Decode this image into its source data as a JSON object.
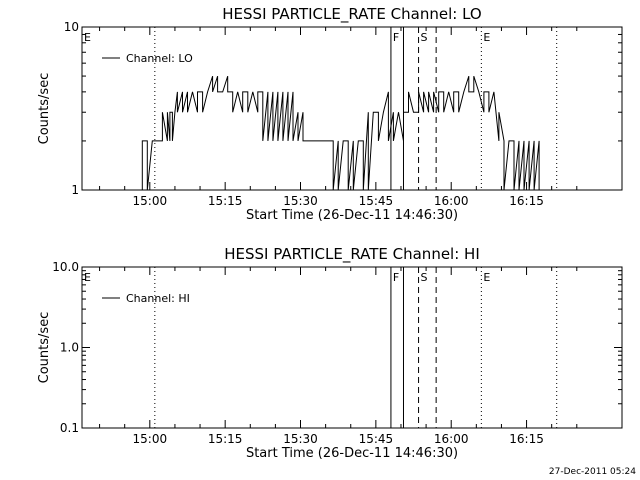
{
  "chart_data": [
    {
      "type": "line",
      "title": "HESSI PARTICLE_RATE Channel: LO",
      "xlabel": "Start Time (26-Dec-11 14:46:30)",
      "ylabel": "Counts/sec",
      "yscale": "log",
      "ylim": [
        1,
        10
      ],
      "xlim": [
        "14:46:30",
        "16:34:00"
      ],
      "x_ticks": [
        "15:00",
        "15:15",
        "15:30",
        "15:45",
        "16:00",
        "16:15"
      ],
      "y_ticks": [
        "1",
        "10"
      ],
      "legend": {
        "placement": "top-left",
        "entries": [
          "Channel: LO"
        ]
      },
      "grid": false,
      "series": [
        {
          "name": "Channel: LO",
          "x_minutes_after_start": [
            12,
            12,
            13,
            13,
            14,
            14,
            15,
            15,
            16,
            16,
            17,
            17,
            17.5,
            17.5,
            18,
            18,
            18.5,
            18.5,
            19,
            19,
            20,
            20,
            21,
            21,
            22,
            22,
            23,
            23,
            24,
            24,
            25,
            25,
            26,
            26,
            27,
            27,
            28,
            28,
            29,
            29,
            30,
            30,
            31,
            31,
            32,
            32,
            33,
            33,
            34,
            34,
            35,
            35,
            36,
            36,
            37,
            37,
            38,
            38,
            39,
            39,
            40,
            40,
            41,
            41,
            42,
            42,
            43,
            43,
            44,
            44,
            45,
            45,
            46,
            46,
            47,
            47,
            48,
            48,
            49,
            49,
            50,
            50,
            51,
            51,
            52,
            52,
            53,
            53,
            54,
            54,
            55,
            55,
            56,
            56,
            57,
            57,
            58,
            58,
            59,
            59,
            60,
            60,
            61,
            61,
            62,
            62,
            63,
            63,
            64,
            64,
            65,
            65,
            66,
            66,
            67,
            67,
            68,
            68,
            69,
            69,
            70,
            70,
            71,
            71,
            72,
            72,
            73,
            73,
            74,
            74,
            75,
            75,
            76,
            76,
            77,
            77,
            78,
            78,
            79,
            79,
            80,
            80,
            81,
            81,
            82,
            82,
            83,
            83,
            84,
            84,
            85,
            85,
            86,
            86,
            87,
            87,
            88,
            88,
            89,
            89,
            90,
            90,
            91,
            91,
            92,
            92,
            93,
            93,
            94,
            94,
            95,
            95,
            96,
            96,
            97,
            97,
            98,
            98,
            99,
            99,
            100,
            100
          ],
          "values": [
            1,
            2,
            2,
            1,
            2,
            2,
            2,
            2,
            2,
            3,
            2,
            3,
            2,
            3,
            3,
            2,
            3,
            3,
            4,
            3,
            4,
            3,
            4,
            3,
            4,
            4,
            3,
            4,
            4,
            3,
            4,
            4,
            5,
            4,
            5,
            4,
            4,
            4,
            5,
            4,
            4,
            3,
            4,
            4,
            3,
            4,
            4,
            3,
            4,
            4,
            3,
            4,
            4,
            2,
            4,
            2,
            4,
            2,
            4,
            2,
            4,
            2,
            4,
            2,
            4,
            2,
            3,
            2,
            3,
            2,
            2,
            2,
            2,
            2,
            2,
            2,
            2,
            2,
            2,
            2,
            2,
            1,
            2,
            1,
            2,
            2,
            2,
            1,
            2,
            1,
            2,
            2,
            2,
            1,
            3,
            1,
            3,
            3,
            3,
            2,
            3,
            3,
            4,
            2,
            3,
            2,
            3,
            3,
            2,
            3,
            3,
            4,
            3,
            3,
            3,
            4,
            3,
            4,
            3,
            4,
            3,
            4,
            3,
            4,
            4,
            3,
            4,
            4,
            3,
            4,
            4,
            3,
            4,
            4,
            5,
            4,
            4,
            5,
            4,
            4,
            3,
            4,
            4,
            3,
            4,
            4,
            2,
            3,
            2,
            1,
            2,
            2,
            2,
            1,
            2,
            1,
            2,
            1,
            2,
            1,
            2,
            1,
            2,
            1,
            1,
            1,
            1,
            1,
            1,
            1,
            1,
            1,
            1,
            1,
            1,
            1,
            1,
            1,
            1,
            1,
            1,
            1
          ]
        }
      ],
      "markers": [
        {
          "label": "E",
          "time": "14:46:30",
          "style": "dotted"
        },
        {
          "label": "",
          "time": "15:01:00",
          "style": "dotted"
        },
        {
          "label": "F",
          "time": "15:48:00",
          "style": "solid"
        },
        {
          "label": "",
          "time": "15:50:30",
          "style": "solid"
        },
        {
          "label": "S",
          "time": "15:53:30",
          "style": "dashed"
        },
        {
          "label": "",
          "time": "15:57:00",
          "style": "dashed"
        },
        {
          "label": "E",
          "time": "16:06:00",
          "style": "dotted"
        },
        {
          "label": "",
          "time": "16:21:00",
          "style": "dotted"
        }
      ]
    },
    {
      "type": "line",
      "title": "HESSI PARTICLE_RATE Channel: HI",
      "xlabel": "Start Time (26-Dec-11 14:46:30)",
      "ylabel": "Counts/sec",
      "yscale": "log",
      "ylim": [
        0.1,
        10.0
      ],
      "xlim": [
        "14:46:30",
        "16:34:00"
      ],
      "x_ticks": [
        "15:00",
        "15:15",
        "15:30",
        "15:45",
        "16:00",
        "16:15"
      ],
      "y_ticks": [
        "0.1",
        "1.0",
        "10.0"
      ],
      "legend": {
        "placement": "top-left",
        "entries": [
          "Channel: HI"
        ]
      },
      "grid": false,
      "series": [
        {
          "name": "Channel: HI",
          "x_minutes_after_start": [],
          "values": []
        }
      ],
      "markers": [
        {
          "label": "E",
          "time": "14:46:30",
          "style": "dotted"
        },
        {
          "label": "",
          "time": "15:01:00",
          "style": "dotted"
        },
        {
          "label": "F",
          "time": "15:48:00",
          "style": "solid"
        },
        {
          "label": "",
          "time": "15:50:30",
          "style": "solid"
        },
        {
          "label": "S",
          "time": "15:53:30",
          "style": "dashed"
        },
        {
          "label": "",
          "time": "15:57:00",
          "style": "dashed"
        },
        {
          "label": "E",
          "time": "16:06:00",
          "style": "dotted"
        },
        {
          "label": "",
          "time": "16:21:00",
          "style": "dotted"
        }
      ]
    }
  ],
  "timestamp": "27-Dec-2011 05:24"
}
